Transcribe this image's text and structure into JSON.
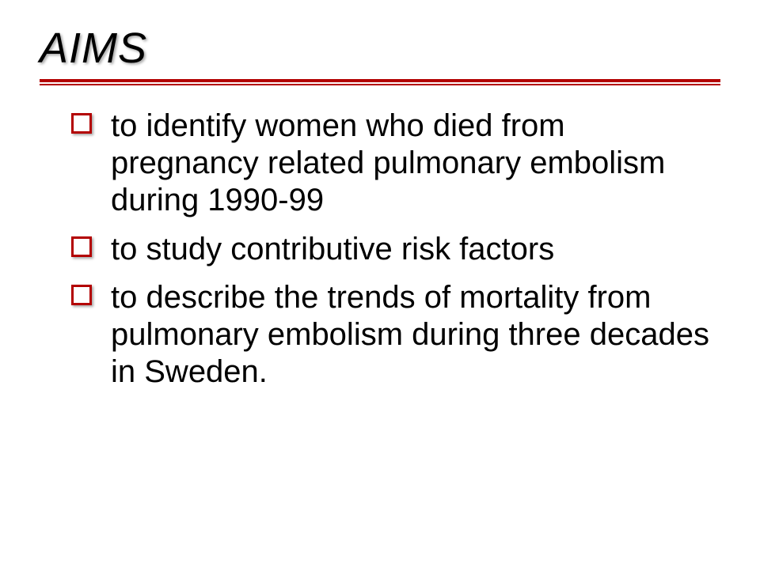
{
  "slide": {
    "title": "AIMS",
    "title_color": "#000000",
    "title_fontsize": 54,
    "rule_color": "#b30000",
    "bullet_box_border_color": "#b30000",
    "body_fontsize": 40,
    "body_color": "#000000",
    "background_color": "#ffffff",
    "bullets": [
      {
        "text": "to identify women who died from pregnancy related pulmonary embolism during 1990-99"
      },
      {
        "text": "to study contributive risk factors"
      },
      {
        "text": "to describe the trends of mortality from pulmonary embolism during three decades in Sweden."
      }
    ]
  }
}
